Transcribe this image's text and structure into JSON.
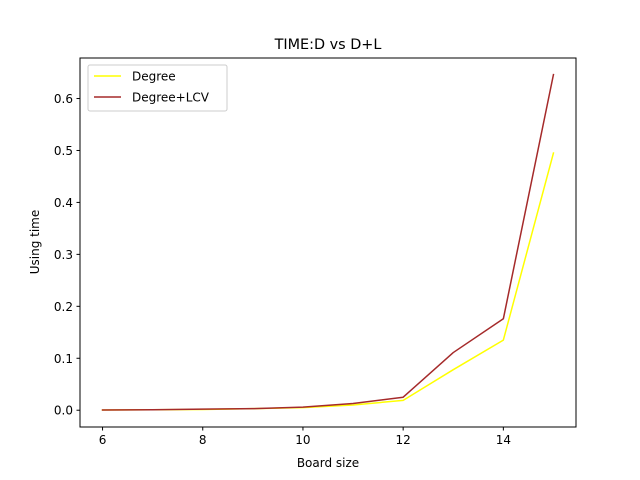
{
  "chart_data": {
    "type": "line",
    "title": "TIME:D vs D+L",
    "xlabel": "Board size",
    "ylabel": "Using time",
    "xlim": [
      5.55,
      15.45
    ],
    "ylim": [
      -0.0323,
      0.678
    ],
    "xticks": [
      6,
      8,
      10,
      12,
      14
    ],
    "xtick_labels": [
      "6",
      "8",
      "10",
      "12",
      "14"
    ],
    "yticks": [
      0.0,
      0.1,
      0.2,
      0.3,
      0.4,
      0.5,
      0.6
    ],
    "ytick_labels": [
      "0.0",
      "0.1",
      "0.2",
      "0.3",
      "0.4",
      "0.5",
      "0.6"
    ],
    "grid": false,
    "legend_position": "upper-left",
    "x": [
      6,
      7,
      8,
      9,
      10,
      11,
      12,
      13,
      14,
      15
    ],
    "series": [
      {
        "name": "Degree",
        "color": "#ffff00",
        "values": [
          0.0005,
          0.001,
          0.0015,
          0.003,
          0.005,
          0.01,
          0.019,
          0.078,
          0.135,
          0.495
        ]
      },
      {
        "name": "Degree+LCV",
        "color": "#a52a2a",
        "values": [
          0.0005,
          0.001,
          0.002,
          0.003,
          0.006,
          0.013,
          0.025,
          0.111,
          0.176,
          0.646
        ]
      }
    ]
  }
}
